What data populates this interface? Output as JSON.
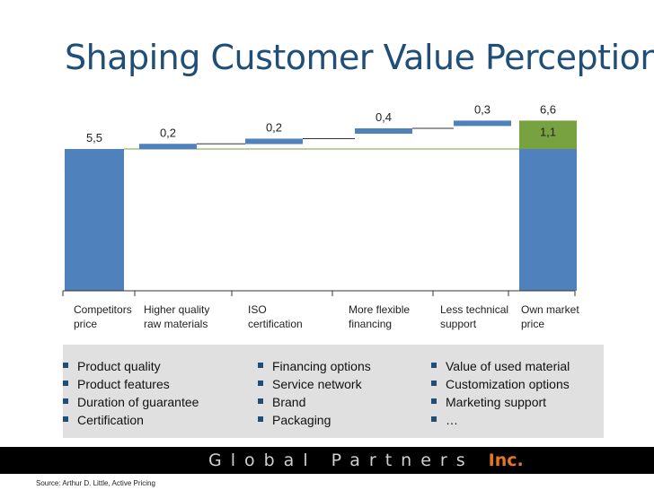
{
  "page": {
    "title": "Shaping Customer Value Perception",
    "source": "Source: Arthur D. Little, Active Pricing",
    "logo_main": "Global Partners",
    "logo_suffix": "Inc."
  },
  "colors": {
    "bar": "#4f81bd",
    "highlight": "#77a23f",
    "title": "#1f4e79",
    "accent": "#e8761e"
  },
  "chart_data": {
    "type": "waterfall",
    "categories": [
      "Competitors\nprice",
      "Higher quality\nraw materials",
      "ISO\ncertification",
      "More flexible\nfinancing",
      "Less technical\nsupport",
      "Own market\nprice"
    ],
    "values": [
      5.5,
      0.2,
      0.2,
      0.4,
      0.3,
      6.6
    ],
    "labels": [
      "5,5",
      "0,2",
      "0,2",
      "0,4",
      "0,3",
      "6,6"
    ],
    "highlight": {
      "value": 1.1,
      "label": "1,1"
    },
    "kinds": [
      "total",
      "delta",
      "delta",
      "delta",
      "delta",
      "total"
    ]
  },
  "drivers": [
    [
      "Product quality",
      "Product features",
      "Duration of guarantee",
      "Certification"
    ],
    [
      "Financing options",
      "Service network",
      "Brand",
      "Packaging"
    ],
    [
      "Value of used material",
      "Customization options",
      "Marketing support",
      "…"
    ]
  ]
}
